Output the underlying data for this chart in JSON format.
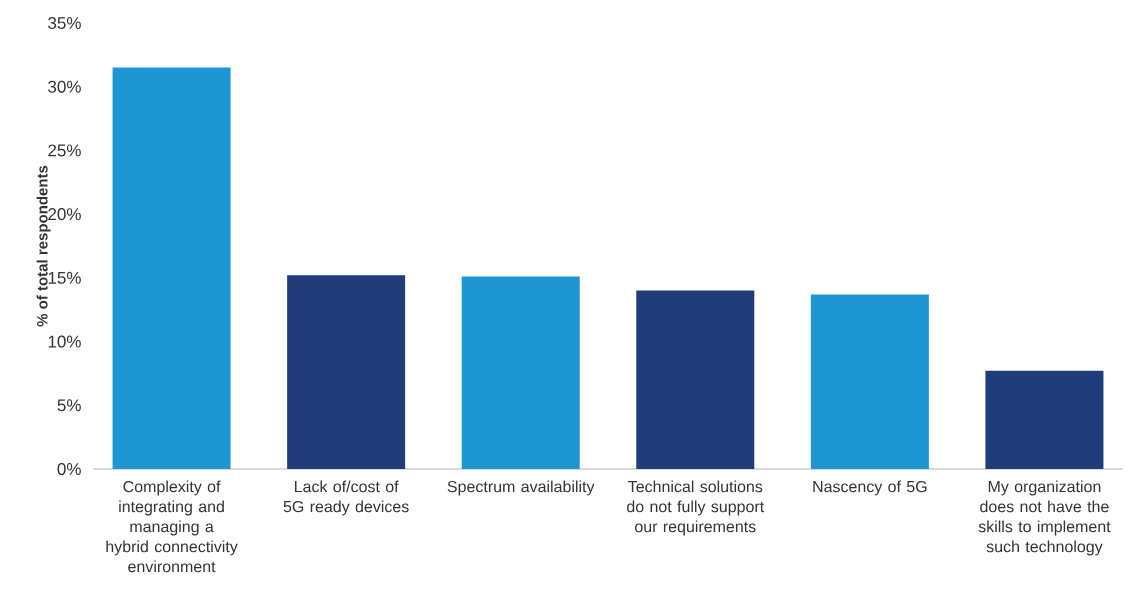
{
  "chart_data": {
    "type": "bar",
    "ylabel": "% of total respondents",
    "categories": [
      "Complexity of integrating and managing a hybrid connectivity environment",
      "Lack of/cost of 5G ready devices",
      "Spectrum availability",
      "Technical solutions do not fully support our requirements",
      "Nascency of 5G",
      "My organization does not have the skills to implement such technology"
    ],
    "values": [
      31.5,
      15.2,
      15.1,
      14.0,
      13.7,
      7.7
    ],
    "colors": [
      "#1f96d4",
      "#1f3d7a",
      "#1f96d4",
      "#1f3d7a",
      "#1f96d4",
      "#1f3d7a"
    ],
    "ylim": [
      0,
      35
    ],
    "yticks": [
      {
        "value": 0,
        "label": "0%"
      },
      {
        "value": 5,
        "label": "5%"
      },
      {
        "value": 10,
        "label": "10%"
      },
      {
        "value": 15,
        "label": "15%"
      },
      {
        "value": 20,
        "label": "20%"
      },
      {
        "value": 25,
        "label": "25%"
      },
      {
        "value": 30,
        "label": "30%"
      },
      {
        "value": 35,
        "label": "35%"
      }
    ],
    "grid": false
  }
}
